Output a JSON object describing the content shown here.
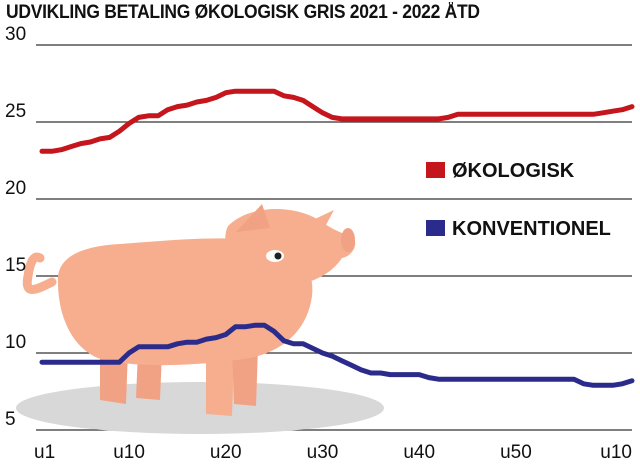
{
  "chart_data": {
    "type": "line",
    "title": "UDVIKLING BETALING ØKOLOGISK GRIS 2021 - 2022 ÅTD",
    "xlabel": "",
    "ylabel": "",
    "ylim": [
      5,
      30
    ],
    "yticks": [
      "5",
      "10",
      "15",
      "20",
      "25",
      "30"
    ],
    "xticks": [
      "u1",
      "u10",
      "u20",
      "u30",
      "u40",
      "u50",
      "u10"
    ],
    "grid": true,
    "legend_position": "right",
    "colors": {
      "organic": "#c4161c",
      "conventional": "#2b2b8c",
      "pig": "#f6ae8e",
      "shadow": "#d8d8d8"
    },
    "illustration": "pig-illustration",
    "series": [
      {
        "name": "ØKOLOGISK",
        "color": "#c4161c",
        "x": [
          1,
          2,
          3,
          4,
          5,
          6,
          7,
          8,
          9,
          10,
          11,
          12,
          13,
          14,
          15,
          16,
          17,
          18,
          19,
          20,
          21,
          22,
          23,
          24,
          25,
          26,
          27,
          28,
          29,
          30,
          31,
          32,
          33,
          34,
          35,
          36,
          37,
          38,
          39,
          40,
          41,
          42,
          43,
          44,
          45,
          46,
          47,
          48,
          49,
          50,
          51,
          52,
          53,
          54,
          55,
          56,
          57,
          58,
          59,
          60,
          61,
          62
        ],
        "y": [
          23.1,
          23.1,
          23.2,
          23.4,
          23.6,
          23.7,
          23.9,
          24.0,
          24.4,
          24.9,
          25.3,
          25.4,
          25.4,
          25.8,
          26.0,
          26.1,
          26.3,
          26.4,
          26.6,
          26.9,
          27.0,
          27.0,
          27.0,
          27.0,
          27.0,
          26.7,
          26.6,
          26.4,
          26.0,
          25.6,
          25.3,
          25.2,
          25.2,
          25.2,
          25.2,
          25.2,
          25.2,
          25.2,
          25.2,
          25.2,
          25.2,
          25.2,
          25.3,
          25.5,
          25.5,
          25.5,
          25.5,
          25.5,
          25.5,
          25.5,
          25.5,
          25.5,
          25.5,
          25.5,
          25.5,
          25.5,
          25.5,
          25.5,
          25.6,
          25.7,
          25.8,
          26.0
        ]
      },
      {
        "name": "KONVENTIONEL",
        "color": "#2b2b8c",
        "x": [
          1,
          2,
          3,
          4,
          5,
          6,
          7,
          8,
          9,
          10,
          11,
          12,
          13,
          14,
          15,
          16,
          17,
          18,
          19,
          20,
          21,
          22,
          23,
          24,
          25,
          26,
          27,
          28,
          29,
          30,
          31,
          32,
          33,
          34,
          35,
          36,
          37,
          38,
          39,
          40,
          41,
          42,
          43,
          44,
          45,
          46,
          47,
          48,
          49,
          50,
          51,
          52,
          53,
          54,
          55,
          56,
          57,
          58,
          59,
          60,
          61,
          62
        ],
        "y": [
          9.4,
          9.4,
          9.4,
          9.4,
          9.4,
          9.4,
          9.4,
          9.4,
          9.4,
          10.0,
          10.4,
          10.4,
          10.4,
          10.4,
          10.6,
          10.7,
          10.7,
          10.9,
          11.0,
          11.2,
          11.7,
          11.7,
          11.8,
          11.8,
          11.4,
          10.8,
          10.6,
          10.6,
          10.3,
          10.0,
          9.8,
          9.5,
          9.2,
          8.9,
          8.7,
          8.7,
          8.6,
          8.6,
          8.6,
          8.6,
          8.4,
          8.3,
          8.3,
          8.3,
          8.3,
          8.3,
          8.3,
          8.3,
          8.3,
          8.3,
          8.3,
          8.3,
          8.3,
          8.3,
          8.3,
          8.3,
          8.0,
          7.9,
          7.9,
          7.9,
          8.0,
          8.2
        ]
      }
    ]
  }
}
